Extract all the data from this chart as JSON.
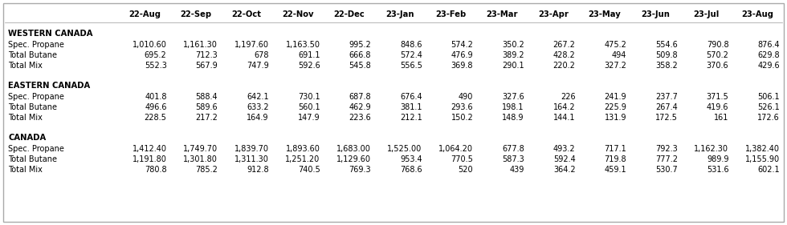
{
  "columns": [
    "22-Aug",
    "22-Sep",
    "22-Oct",
    "22-Nov",
    "22-Dec",
    "23-Jan",
    "23-Feb",
    "23-Mar",
    "23-Apr",
    "23-May",
    "23-Jun",
    "23-Jul",
    "23-Aug"
  ],
  "sections": [
    {
      "title": "WESTERN CANADA",
      "rows": [
        {
          "label": "Spec. Propane",
          "values": [
            "1,010.60",
            "1,161.30",
            "1,197.60",
            "1,163.50",
            "995.2",
            "848.6",
            "574.2",
            "350.2",
            "267.2",
            "475.2",
            "554.6",
            "790.8",
            "876.4"
          ]
        },
        {
          "label": "Total Butane",
          "values": [
            "695.2",
            "712.3",
            "678",
            "691.1",
            "666.8",
            "572.4",
            "476.9",
            "389.2",
            "428.2",
            "494",
            "509.8",
            "570.2",
            "629.8"
          ]
        },
        {
          "label": "Total Mix",
          "values": [
            "552.3",
            "567.9",
            "747.9",
            "592.6",
            "545.8",
            "556.5",
            "369.8",
            "290.1",
            "220.2",
            "327.2",
            "358.2",
            "370.6",
            "429.6"
          ]
        }
      ]
    },
    {
      "title": "EASTERN CANADA",
      "rows": [
        {
          "label": "Spec. Propane",
          "values": [
            "401.8",
            "588.4",
            "642.1",
            "730.1",
            "687.8",
            "676.4",
            "490",
            "327.6",
            "226",
            "241.9",
            "237.7",
            "371.5",
            "506.1"
          ]
        },
        {
          "label": "Total Butane",
          "values": [
            "496.6",
            "589.6",
            "633.2",
            "560.1",
            "462.9",
            "381.1",
            "293.6",
            "198.1",
            "164.2",
            "225.9",
            "267.4",
            "419.6",
            "526.1"
          ]
        },
        {
          "label": "Total Mix",
          "values": [
            "228.5",
            "217.2",
            "164.9",
            "147.9",
            "223.6",
            "212.1",
            "150.2",
            "148.9",
            "144.1",
            "131.9",
            "172.5",
            "161",
            "172.6"
          ]
        }
      ]
    },
    {
      "title": "CANADA",
      "rows": [
        {
          "label": "Spec. Propane",
          "values": [
            "1,412.40",
            "1,749.70",
            "1,839.70",
            "1,893.60",
            "1,683.00",
            "1,525.00",
            "1,064.20",
            "677.8",
            "493.2",
            "717.1",
            "792.3",
            "1,162.30",
            "1,382.40"
          ]
        },
        {
          "label": "Total Butane",
          "values": [
            "1,191.80",
            "1,301.80",
            "1,311.30",
            "1,251.20",
            "1,129.60",
            "953.4",
            "770.5",
            "587.3",
            "592.4",
            "719.8",
            "777.2",
            "989.9",
            "1,155.90"
          ]
        },
        {
          "label": "Total Mix",
          "values": [
            "780.8",
            "785.2",
            "912.8",
            "740.5",
            "769.3",
            "768.6",
            "520",
            "439",
            "364.2",
            "459.1",
            "530.7",
            "531.6",
            "602.1"
          ]
        }
      ]
    }
  ],
  "bg_color": "#ffffff",
  "border_color": "#000000",
  "font_size": 7.0,
  "section_title_font_size": 7.2,
  "header_font_size": 7.2
}
